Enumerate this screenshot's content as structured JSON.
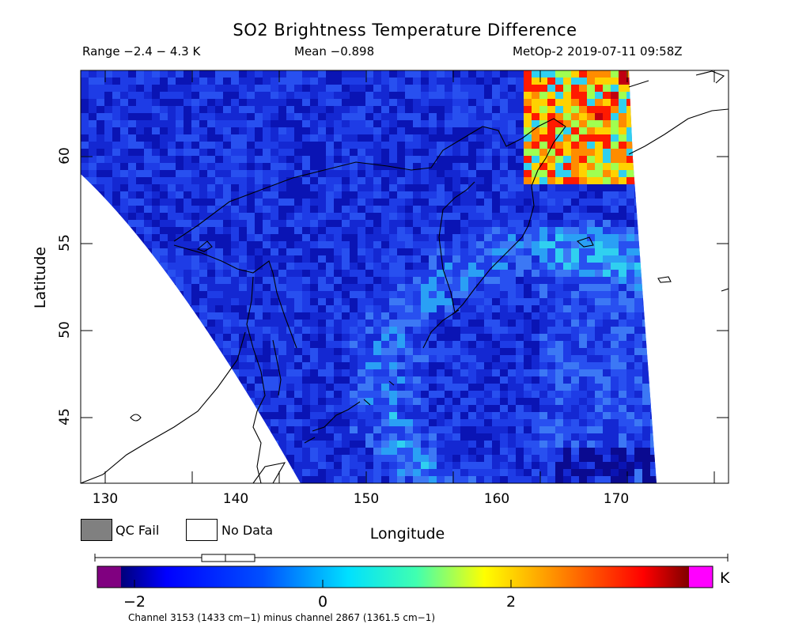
{
  "header": {
    "title": "SO2 Brightness Temperature Difference",
    "range_text": "Range −2.4 − 4.3 K",
    "mean_text": "Mean −0.898",
    "source_text": "MetOp-2 2019-07-11 09:58Z"
  },
  "axes": {
    "xlabel": "Longitude",
    "ylabel": "Latitude",
    "x_ticks": [
      "130",
      "140",
      "150",
      "160",
      "170"
    ],
    "y_ticks": [
      "45",
      "50",
      "55",
      "60"
    ]
  },
  "legend": {
    "qc_fail_label": "QC Fail",
    "qc_fail_color": "#808080",
    "no_data_label": "No Data",
    "no_data_color": "#ffffff"
  },
  "colorbar": {
    "unit": "K",
    "ticks": [
      "−2",
      "0",
      "2"
    ],
    "range": [
      -2.4,
      4.3
    ],
    "low_color": "#800080",
    "high_color": "#ff00ff"
  },
  "footnote": "Channel 3153 (1433 cm−1) minus channel 2867 (1361.5 cm−1)",
  "map": {
    "lon_range": [
      128.5,
      177
    ],
    "lat_range": [
      41.2,
      64.9
    ],
    "hotspot_region": "north-east corner near 165–170 E, 60–64 N"
  }
}
